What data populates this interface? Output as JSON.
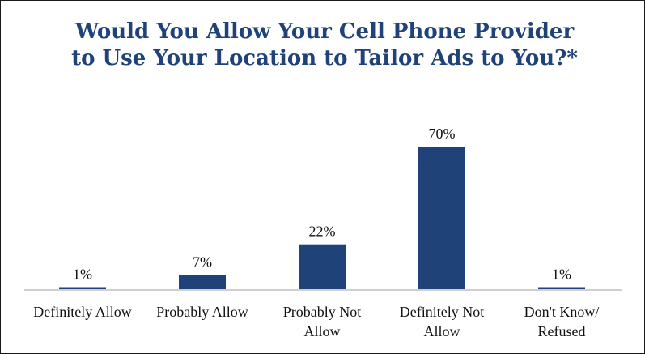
{
  "chart_data": {
    "type": "bar",
    "title": "Would You Allow Your Cell Phone Provider to Use Your Location to Tailor Ads to You?*",
    "categories": [
      [
        "Definitely Allow"
      ],
      [
        "Probably Allow"
      ],
      [
        "Probably Not",
        "Allow"
      ],
      [
        "Definitely Not",
        "Allow"
      ],
      [
        "Don't Know/",
        "Refused"
      ]
    ],
    "values": [
      1,
      7,
      22,
      70,
      1
    ],
    "value_labels": [
      "1%",
      "7%",
      "22%",
      "70%",
      "1%"
    ],
    "ylim": [
      0,
      70
    ],
    "grid": false,
    "legend": "none",
    "bar_color": "#1f4279",
    "title_color": "#1f4279"
  }
}
